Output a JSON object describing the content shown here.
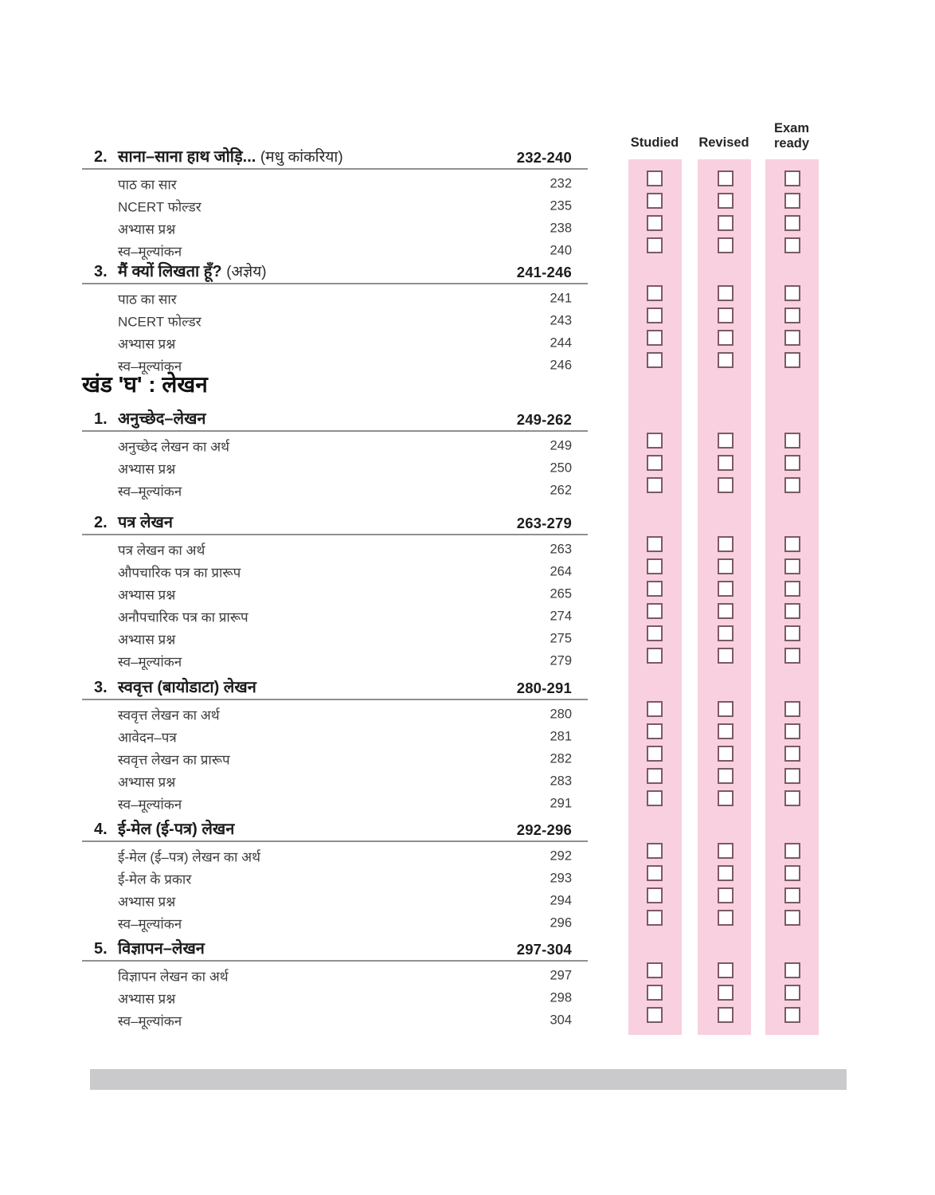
{
  "tracker": {
    "headers": [
      "Studied",
      "Revised",
      "Exam ready"
    ]
  },
  "toc": {
    "blocks": [
      {
        "type": "chapter",
        "num": "2.",
        "title": "साना–साना हाथ जोड़ि...",
        "note": "(मधु कांकरिया)",
        "range": "232-240",
        "items": [
          {
            "label": "पाठ का सार",
            "page": "232"
          },
          {
            "label": "NCERT फोल्डर",
            "page": "235"
          },
          {
            "label": "अभ्यास प्रश्न",
            "page": "238"
          },
          {
            "label": "स्व–मूल्यांकन",
            "page": "240"
          }
        ]
      },
      {
        "type": "chapter",
        "num": "3.",
        "title": "मैं क्यों लिखता हूँ?",
        "note": "(अज्ञेय)",
        "range": "241-246",
        "items": [
          {
            "label": "पाठ का सार",
            "page": "241"
          },
          {
            "label": "NCERT फोल्डर",
            "page": "243"
          },
          {
            "label": "अभ्यास प्रश्न",
            "page": "244"
          },
          {
            "label": "स्व–मूल्यांकन",
            "page": "246"
          }
        ]
      },
      {
        "type": "section",
        "label": "खंड 'घ' : लेखन"
      },
      {
        "type": "chapter",
        "num": "1.",
        "title": "अनुच्छेद–लेखन",
        "note": "",
        "range": "249-262",
        "items": [
          {
            "label": "अनुच्छेद लेखन का अर्थ",
            "page": "249"
          },
          {
            "label": "अभ्यास प्रश्न",
            "page": "250"
          },
          {
            "label": "स्व–मूल्यांकन",
            "page": "262"
          }
        ]
      },
      {
        "type": "chapter",
        "num": "2.",
        "title": "पत्र लेखन",
        "note": "",
        "range": "263-279",
        "items": [
          {
            "label": "पत्र लेखन का अर्थ",
            "page": "263"
          },
          {
            "label": "औपचारिक पत्र का प्रारूप",
            "page": "264"
          },
          {
            "label": "अभ्यास प्रश्न",
            "page": "265"
          },
          {
            "label": "अनौपचारिक पत्र का प्रारूप",
            "page": "274"
          },
          {
            "label": "अभ्यास प्रश्न",
            "page": "275"
          },
          {
            "label": "स्व–मूल्यांकन",
            "page": "279"
          }
        ]
      },
      {
        "type": "chapter",
        "num": "3.",
        "title": "स्ववृत्त (बायोडाटा) लेखन",
        "note": "",
        "range": "280-291",
        "items": [
          {
            "label": "स्ववृत्त लेखन का अर्थ",
            "page": "280"
          },
          {
            "label": "आवेदन–पत्र",
            "page": "281"
          },
          {
            "label": "स्ववृत्त लेखन का प्रारूप",
            "page": "282"
          },
          {
            "label": "अभ्यास प्रश्न",
            "page": "283"
          },
          {
            "label": "स्व–मूल्यांकन",
            "page": "291"
          }
        ]
      },
      {
        "type": "chapter",
        "num": "4.",
        "title": "ई-मेल (ई-पत्र) लेखन",
        "note": "",
        "range": "292-296",
        "items": [
          {
            "label": "ई-मेल (ई–पत्र) लेखन का अर्थ",
            "page": "292"
          },
          {
            "label": "ई-मेल के प्रकार",
            "page": "293"
          },
          {
            "label": "अभ्यास प्रश्न",
            "page": "294"
          },
          {
            "label": "स्व–मूल्यांकन",
            "page": "296"
          }
        ]
      },
      {
        "type": "chapter",
        "num": "5.",
        "title": "विज्ञापन–लेखन",
        "note": "",
        "range": "297-304",
        "items": [
          {
            "label": "विज्ञापन लेखन का अर्थ",
            "page": "297"
          },
          {
            "label": "अभ्यास प्रश्न",
            "page": "298"
          },
          {
            "label": "स्व–मूल्यांकन",
            "page": "304"
          }
        ]
      }
    ]
  },
  "checkbox_state": "unchecked",
  "colors": {
    "pink_column": "#f8d0df",
    "checkbox_border": "#7b5a65",
    "heading_rule": "#909090",
    "footer_bar": "#cacacc"
  }
}
